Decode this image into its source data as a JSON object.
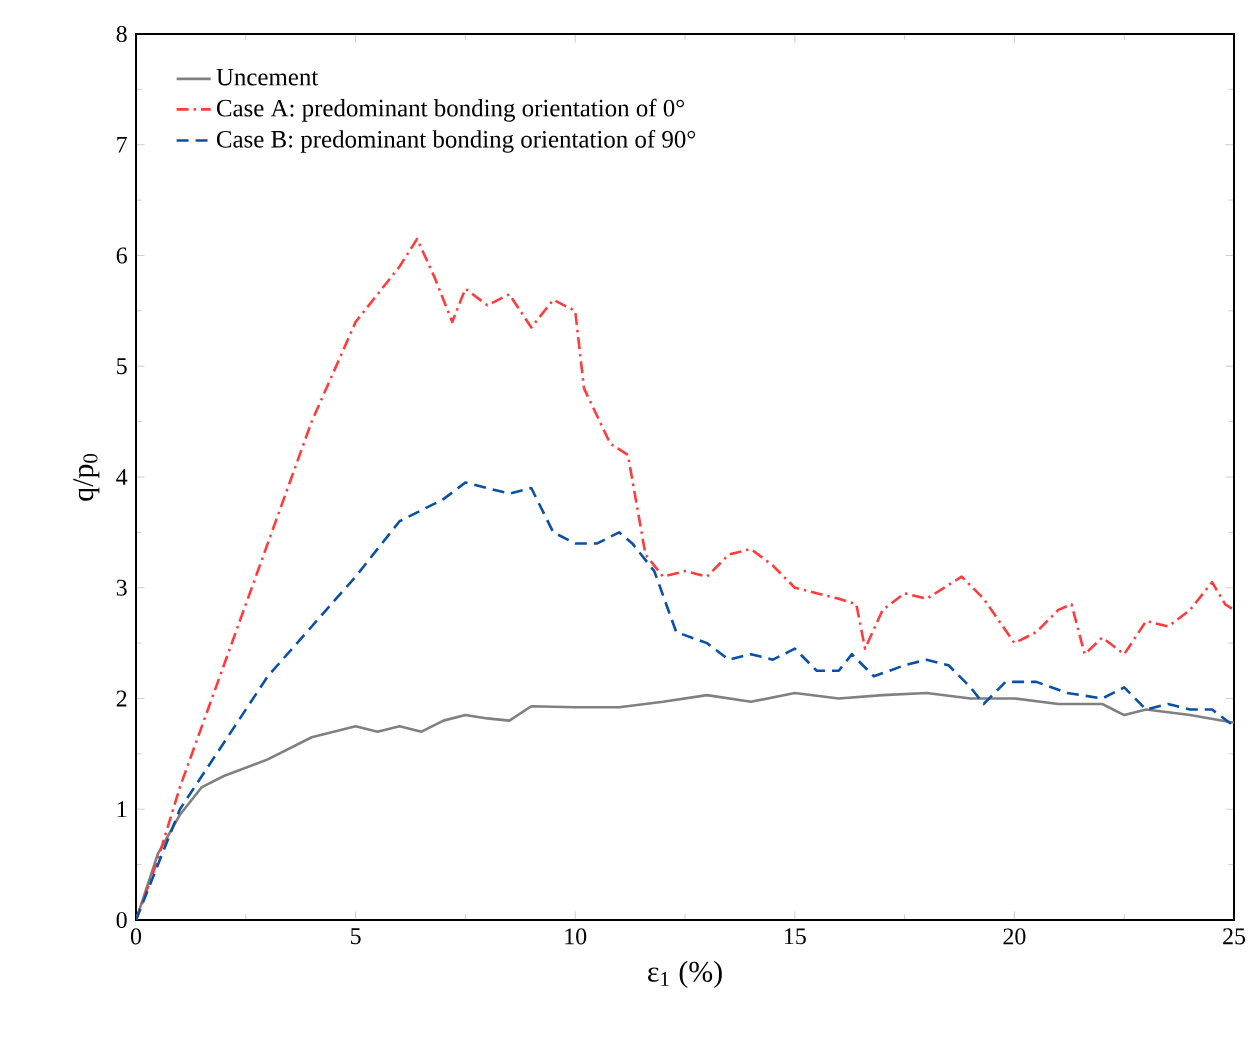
{
  "chart_data": {
    "type": "line",
    "xlabel": "ε$_{1}$ (%)",
    "ylabel": "q/p$_{0}$",
    "xlim": [
      0,
      25
    ],
    "ylim": [
      0,
      8
    ],
    "xticks": [
      0,
      5,
      10,
      15,
      20,
      25
    ],
    "yticks": [
      0,
      1,
      2,
      3,
      4,
      5,
      6,
      7,
      8
    ],
    "legend": "top left",
    "grid": false,
    "marker": "none",
    "series": [
      {
        "name": "Uncement",
        "color": "#808080",
        "line_style": "solid",
        "x": [
          0,
          0.5,
          1,
          1.5,
          2,
          3,
          4,
          5,
          5.5,
          6,
          6.5,
          7,
          7.5,
          8,
          8.5,
          9,
          10,
          11,
          12,
          13,
          14,
          15,
          16,
          17,
          18,
          19,
          20,
          21,
          22,
          22.5,
          23,
          24,
          25
        ],
        "values": [
          0,
          0.6,
          0.95,
          1.2,
          1.3,
          1.45,
          1.65,
          1.75,
          1.7,
          1.75,
          1.7,
          1.8,
          1.85,
          1.82,
          1.8,
          1.93,
          1.92,
          1.92,
          1.97,
          2.03,
          1.97,
          2.05,
          2.0,
          2.03,
          2.05,
          2.0,
          2.0,
          1.95,
          1.95,
          1.85,
          1.9,
          1.85,
          1.78
        ]
      },
      {
        "name": "Case A: predominant bonding orientation of 0°",
        "color": "#ff3b3b",
        "line_style": "dashdot",
        "x": [
          0,
          0.5,
          1,
          2,
          3,
          4,
          5,
          5.5,
          6,
          6.4,
          6.8,
          7.2,
          7.5,
          8,
          8.5,
          9,
          9.5,
          10,
          10.2,
          10.8,
          11.2,
          11.6,
          12,
          12.5,
          13,
          13.5,
          14,
          14.5,
          15,
          15.5,
          16,
          16.4,
          16.6,
          17,
          17.5,
          18,
          18.8,
          19.3,
          20,
          20.5,
          21,
          21.3,
          21.6,
          22,
          22.5,
          23,
          23.5,
          24,
          24.5,
          24.8,
          25
        ],
        "values": [
          0,
          0.55,
          1.2,
          2.3,
          3.4,
          4.5,
          5.4,
          5.65,
          5.9,
          6.15,
          5.8,
          5.4,
          5.7,
          5.55,
          5.65,
          5.35,
          5.6,
          5.5,
          4.8,
          4.3,
          4.2,
          3.3,
          3.1,
          3.15,
          3.1,
          3.3,
          3.35,
          3.2,
          3.0,
          2.95,
          2.9,
          2.85,
          2.45,
          2.8,
          2.95,
          2.9,
          3.1,
          2.9,
          2.5,
          2.6,
          2.8,
          2.85,
          2.4,
          2.55,
          2.4,
          2.7,
          2.65,
          2.8,
          3.05,
          2.85,
          2.8
        ]
      },
      {
        "name": "Case B: predominant bonding orientation of 90°",
        "color": "#0a4fa8",
        "line_style": "dashed",
        "x": [
          0,
          1,
          2,
          3,
          4,
          5,
          6,
          7,
          7.5,
          8,
          8.5,
          9,
          9.5,
          10,
          10.5,
          11,
          11.3,
          11.8,
          12.3,
          13,
          13.5,
          14,
          14.5,
          15,
          15.5,
          16,
          16.3,
          16.8,
          17.5,
          18,
          18.5,
          19,
          19.3,
          19.8,
          20.5,
          21.2,
          22,
          22.5,
          23,
          23.5,
          24,
          24.5,
          25
        ],
        "values": [
          0,
          1.0,
          1.6,
          2.2,
          2.65,
          3.1,
          3.6,
          3.8,
          3.95,
          3.9,
          3.85,
          3.9,
          3.5,
          3.4,
          3.4,
          3.5,
          3.4,
          3.15,
          2.6,
          2.5,
          2.35,
          2.4,
          2.35,
          2.45,
          2.25,
          2.25,
          2.4,
          2.2,
          2.3,
          2.35,
          2.3,
          2.1,
          1.95,
          2.15,
          2.15,
          2.05,
          2.0,
          2.1,
          1.9,
          1.95,
          1.9,
          1.9,
          1.75
        ]
      }
    ]
  }
}
